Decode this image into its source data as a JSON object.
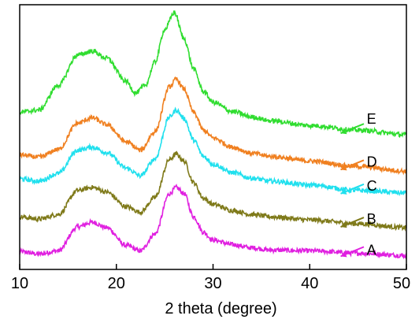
{
  "chart_data": {
    "type": "line",
    "xlabel": "2 theta (degree)",
    "ylabel": "",
    "xlim": [
      10,
      50
    ],
    "x_ticks": [
      "10",
      "20",
      "30",
      "40",
      "50"
    ],
    "y_ticks_shown": false,
    "grid": false,
    "legend": "inline labels with arrows near right end of each curve",
    "series": [
      {
        "name": "A",
        "color": "#e020e0",
        "x": [
          10,
          12,
          14,
          16,
          17.5,
          19,
          21,
          22.5,
          24,
          25.5,
          26.2,
          27,
          28,
          29,
          30,
          32,
          34,
          36,
          40,
          45,
          50
        ],
        "y": [
          0.05,
          0.02,
          0.06,
          0.37,
          0.43,
          0.36,
          0.13,
          0.06,
          0.28,
          0.8,
          0.88,
          0.8,
          0.5,
          0.3,
          0.2,
          0.14,
          0.1,
          0.07,
          0.06,
          0.03,
          0.0
        ]
      },
      {
        "name": "B",
        "color": "#7f7a1a",
        "x": [
          10,
          12,
          14,
          16,
          17.5,
          19,
          21,
          22.5,
          24,
          25.5,
          26.2,
          27,
          28,
          29,
          30,
          32,
          34,
          36,
          40,
          45,
          50
        ],
        "y": [
          0.5,
          0.47,
          0.53,
          0.84,
          0.88,
          0.82,
          0.63,
          0.56,
          0.75,
          1.24,
          1.31,
          1.22,
          0.94,
          0.74,
          0.66,
          0.58,
          0.53,
          0.5,
          0.46,
          0.41,
          0.36
        ]
      },
      {
        "name": "C",
        "color": "#20e0ee",
        "x": [
          10,
          12,
          14,
          16,
          17.5,
          19,
          21,
          22.5,
          24,
          25.5,
          26.2,
          27,
          28,
          29,
          30,
          32,
          34,
          36,
          40,
          45,
          50
        ],
        "y": [
          0.99,
          0.96,
          1.06,
          1.36,
          1.4,
          1.33,
          1.13,
          1.03,
          1.25,
          1.79,
          1.88,
          1.77,
          1.49,
          1.28,
          1.18,
          1.07,
          1.0,
          0.96,
          0.91,
          0.84,
          0.81
        ]
      },
      {
        "name": "D",
        "color": "#f08020",
        "x": [
          10,
          12,
          14,
          16,
          17.5,
          19,
          21,
          22.5,
          24,
          25.5,
          26.2,
          27,
          28,
          29,
          30,
          32,
          34,
          36,
          40,
          45,
          50
        ],
        "y": [
          1.3,
          1.27,
          1.37,
          1.71,
          1.78,
          1.69,
          1.47,
          1.36,
          1.6,
          2.18,
          2.28,
          2.15,
          1.85,
          1.62,
          1.52,
          1.4,
          1.32,
          1.28,
          1.22,
          1.15,
          1.09
        ]
      },
      {
        "name": "E",
        "color": "#30dd30",
        "x": [
          10,
          12,
          14,
          16,
          17.5,
          19,
          21,
          22,
          23,
          24,
          25,
          26,
          27,
          28,
          29,
          30,
          32,
          34,
          36,
          40,
          45,
          50
        ],
        "y": [
          1.85,
          1.88,
          2.2,
          2.59,
          2.64,
          2.55,
          2.25,
          2.1,
          2.2,
          2.5,
          2.92,
          3.14,
          2.8,
          2.41,
          2.12,
          1.98,
          1.86,
          1.79,
          1.74,
          1.68,
          1.62,
          1.56
        ]
      }
    ]
  }
}
